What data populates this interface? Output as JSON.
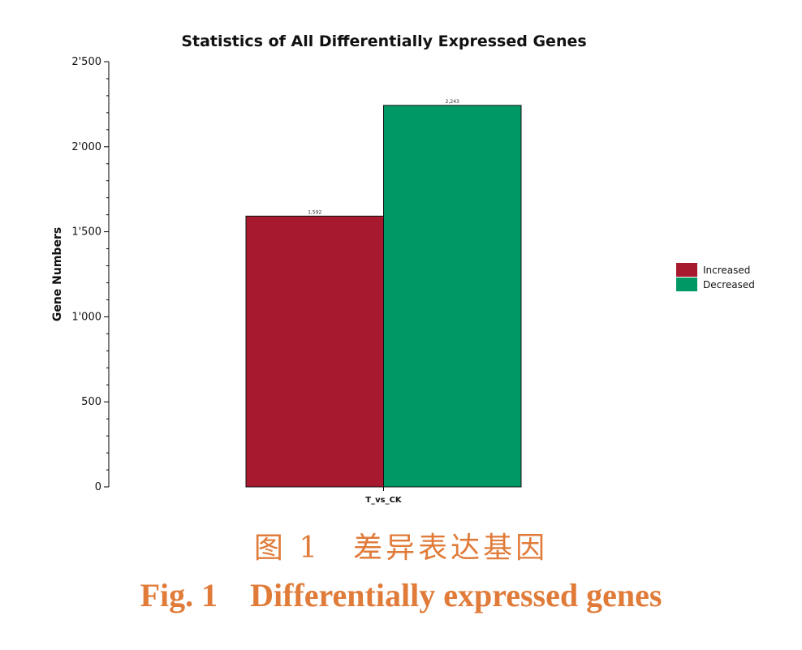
{
  "chart_data": {
    "type": "bar",
    "title": "Statistics of All Differentially Expressed Genes",
    "xlabel": "",
    "ylabel": "Gene Numbers",
    "categories": [
      "T_vs_CK"
    ],
    "series": [
      {
        "name": "Increased",
        "color": "#a6192e",
        "values": [
          1592
        ],
        "value_label": "1,592"
      },
      {
        "name": "Decreased",
        "color": "#009966",
        "values": [
          2243
        ],
        "value_label": "2,243"
      }
    ],
    "ylim": [
      0,
      2500
    ],
    "yticks": [
      {
        "value": 0,
        "label": "0"
      },
      {
        "value": 500,
        "label": "500"
      },
      {
        "value": 1000,
        "label": "1'000"
      },
      {
        "value": 1500,
        "label": "1'500"
      },
      {
        "value": 2000,
        "label": "2'000"
      },
      {
        "value": 2500,
        "label": "2'500"
      }
    ],
    "grid": false,
    "legend": "right"
  },
  "caption": {
    "cn": "图 1　差异表达基因",
    "en": "Fig. 1    Differentially expressed genes"
  }
}
